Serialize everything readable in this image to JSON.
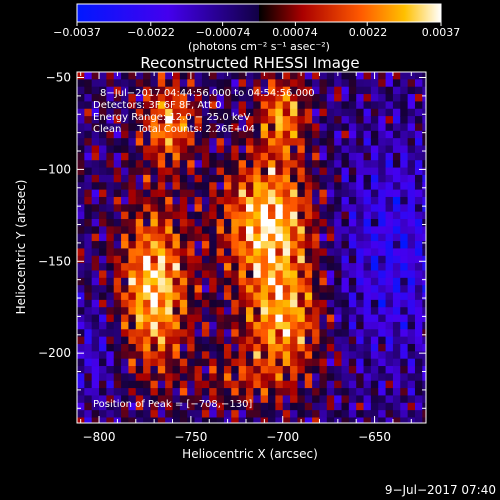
{
  "chart_data": {
    "type": "heatmap",
    "title": "Reconstructed RHESSI Image",
    "xlabel": "Heliocentric X (arcsec)",
    "ylabel": "Heliocentric Y (arcsec)",
    "xlim": [
      -812,
      -622
    ],
    "ylim": [
      -238,
      -47
    ],
    "x_ticks": [
      -800,
      -750,
      -700,
      -650
    ],
    "x_tick_labels": [
      "−800",
      "−750",
      "−700",
      "−650"
    ],
    "y_ticks": [
      -50,
      -100,
      -150,
      -200
    ],
    "y_tick_labels": [
      "−50",
      "−100",
      "−150",
      "−200"
    ],
    "colorbar": {
      "range": [
        -0.0037,
        0.0037
      ],
      "ticks": [
        -0.0037,
        -0.0022,
        -0.00074,
        0.00074,
        0.0022,
        0.0037
      ],
      "tick_labels": [
        "−0.0037",
        "−0.0022",
        "−0.00074",
        "0.00074",
        "0.0022",
        "0.0037"
      ],
      "units": "(photons cm⁻² s⁻¹ asec⁻²)"
    },
    "annotations": {
      "time": "8−Jul−2017 04:44:56.000 to 04:54:56.000",
      "detectors": "Detectors: 3F 6F 8F, Att 0",
      "energy": "Energy Range: 12.0 − 25.0 keV",
      "clean": "Clean     Total Counts: 2.26E+04",
      "peak": "Position of Peak = [−708,−130]"
    },
    "footer": "9−Jul−2017 07:40",
    "sources": [
      {
        "x": -770,
        "y": -165,
        "sx": 13,
        "sy": 30,
        "amp": 0.0037
      },
      {
        "x": -708,
        "y": -128,
        "sx": 17,
        "sy": 24,
        "amp": 0.0037
      },
      {
        "x": -762,
        "y": -75,
        "sx": 10,
        "sy": 16,
        "amp": 0.0028
      },
      {
        "x": -700,
        "y": -70,
        "sx": 9,
        "sy": 15,
        "amp": 0.0027
      },
      {
        "x": -700,
        "y": -182,
        "sx": 15,
        "sy": 22,
        "amp": 0.003
      },
      {
        "x": -724,
        "y": -215,
        "sx": 18,
        "sy": 10,
        "amp": 0.0012
      },
      {
        "x": -640,
        "y": -145,
        "sx": 22,
        "sy": 45,
        "amp": -0.0018
      },
      {
        "x": -803,
        "y": -200,
        "sx": 10,
        "sy": 20,
        "amp": -0.0012
      }
    ]
  }
}
